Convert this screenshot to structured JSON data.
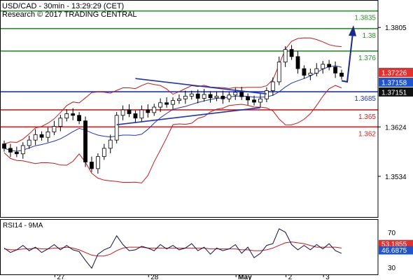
{
  "header": {
    "line1": "USD/CAD - 30min - 13:29:29 (CET)",
    "line2": "Research © 2017 TRADING CENTRAL"
  },
  "colors": {
    "blue_line": "#1f35b6",
    "red_line": "#d42020",
    "green_line": "#2d8f2d",
    "bollinger": "#c21b1b",
    "ma": "#1f35b6",
    "candle": "#000000",
    "forecast_arrow": "#1a2a8c",
    "price_tag_blue": "#1f55c8",
    "price_tag_red": "#e03030",
    "price_tag_black": "#111111"
  },
  "chart_data": [
    {
      "type": "candlestick",
      "title": "USD/CAD - 30min - 13:29:29 (CET)",
      "x_tick_labels": [
        "27",
        "28",
        "May",
        "2",
        "3"
      ],
      "y_tick_labels": [
        "1.3805",
        "1.3624",
        "1.3534"
      ],
      "ylim": [
        1.346,
        1.3855
      ],
      "grid": false,
      "horizontal_levels": [
        {
          "label": "1.3835",
          "value": 1.3835,
          "color": "green"
        },
        {
          "label": "1.38",
          "value": 1.3803,
          "color": "green"
        },
        {
          "label": "1.376",
          "value": 1.3762,
          "color": "green"
        },
        {
          "label": "1.3685",
          "value": 1.3688,
          "color": "blue"
        },
        {
          "label": "1.365",
          "value": 1.3655,
          "color": "red"
        },
        {
          "label": "1.362",
          "value": 1.3624,
          "color": "red"
        }
      ],
      "price_tags": [
        {
          "label": "1.37226",
          "value": 1.37226,
          "style": "red"
        },
        {
          "label": "1.37158",
          "value": 1.37158,
          "style": "blue"
        },
        {
          "label": "1.37151",
          "value": 1.37151,
          "style": "black"
        }
      ],
      "close_series": [
        1.3585,
        1.3578,
        1.3575,
        1.359,
        1.36,
        1.361,
        1.3605,
        1.3615,
        1.3625,
        1.364,
        1.3648,
        1.3645,
        1.3635,
        1.356,
        1.3548,
        1.357,
        1.3585,
        1.36,
        1.3645,
        1.3655,
        1.3648,
        1.364,
        1.3655,
        1.365,
        1.366,
        1.3668,
        1.3665,
        1.3672,
        1.3675,
        1.368,
        1.3684,
        1.3676,
        1.3683,
        1.3677,
        1.368,
        1.3675,
        1.3682,
        1.3687,
        1.3679,
        1.3673,
        1.3669,
        1.3675,
        1.369,
        1.3706,
        1.3742,
        1.3765,
        1.3752,
        1.373,
        1.3718,
        1.3722,
        1.373,
        1.3738,
        1.3733,
        1.3722,
        1.3716
      ],
      "series": [
        {
          "name": "RSI14",
          "values": [
            52,
            47,
            50,
            55,
            49,
            53,
            47,
            51,
            56,
            50,
            55,
            50,
            48,
            38,
            29,
            45,
            50,
            53,
            66,
            56,
            49,
            50,
            54,
            52,
            49,
            56,
            51,
            55,
            50,
            52,
            57,
            49,
            53,
            45,
            52,
            49,
            51,
            56,
            46,
            53,
            41,
            46,
            55,
            57,
            74,
            70,
            56,
            50,
            55,
            50,
            56,
            51,
            57,
            49,
            46
          ]
        },
        {
          "name": "9MA",
          "values": [
            51,
            50,
            50,
            51,
            51,
            52,
            51,
            51,
            52,
            52,
            53,
            52,
            50,
            47,
            44,
            43,
            43,
            45,
            49,
            52,
            53,
            53,
            53,
            52,
            52,
            52,
            52,
            52,
            52,
            52,
            52,
            52,
            52,
            51,
            51,
            51,
            51,
            51,
            50,
            50,
            49,
            49,
            50,
            52,
            55,
            58,
            59,
            58,
            57,
            55,
            53,
            53,
            53,
            53,
            52
          ]
        }
      ]
    },
    {
      "type": "line",
      "title": "RSI14 - 9MA",
      "ylim": [
        22,
        85
      ],
      "y_tick_labels": [
        "70",
        "30"
      ],
      "value_tags": [
        {
          "label": "53.1855",
          "style": "red"
        },
        {
          "label": "46.6875",
          "style": "blue"
        }
      ]
    }
  ]
}
